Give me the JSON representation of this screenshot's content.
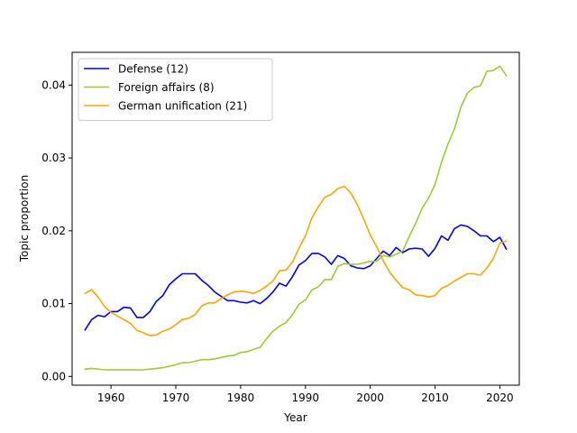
{
  "chart_data": {
    "type": "line",
    "xlabel": "Year",
    "ylabel": "Topic proportion",
    "xlim": [
      1954,
      2023
    ],
    "ylim": [
      -0.0012,
      0.0445
    ],
    "xticks": [
      1960,
      1970,
      1980,
      1990,
      2000,
      2010,
      2020
    ],
    "yticks": [
      0.0,
      0.01,
      0.02,
      0.03,
      0.04
    ],
    "xtick_labels": [
      "1960",
      "1970",
      "1980",
      "1990",
      "2000",
      "2010",
      "2020"
    ],
    "ytick_labels": [
      "0.00",
      "0.01",
      "0.02",
      "0.03",
      "0.04"
    ],
    "grid": false,
    "legend_position": "top-left",
    "x": [
      1956,
      1957,
      1958,
      1959,
      1960,
      1961,
      1962,
      1963,
      1964,
      1965,
      1966,
      1967,
      1968,
      1969,
      1970,
      1971,
      1972,
      1973,
      1974,
      1975,
      1976,
      1977,
      1978,
      1979,
      1980,
      1981,
      1982,
      1983,
      1984,
      1985,
      1986,
      1987,
      1988,
      1989,
      1990,
      1991,
      1992,
      1993,
      1994,
      1995,
      1996,
      1997,
      1998,
      1999,
      2000,
      2001,
      2002,
      2003,
      2004,
      2005,
      2006,
      2007,
      2008,
      2009,
      2010,
      2011,
      2012,
      2013,
      2014,
      2015,
      2016,
      2017,
      2018,
      2019,
      2020,
      2021
    ],
    "series": [
      {
        "name": "Defense (12)",
        "color": "#0000ee",
        "values": [
          0.0064,
          0.0078,
          0.0084,
          0.0082,
          0.0089,
          0.0089,
          0.0095,
          0.0094,
          0.0081,
          0.0081,
          0.0089,
          0.0103,
          0.0111,
          0.0126,
          0.0134,
          0.0141,
          0.0141,
          0.0141,
          0.0132,
          0.0125,
          0.0116,
          0.011,
          0.0104,
          0.0104,
          0.0102,
          0.0101,
          0.0104,
          0.01,
          0.0107,
          0.0116,
          0.0128,
          0.0124,
          0.0137,
          0.0153,
          0.0159,
          0.0169,
          0.0169,
          0.0164,
          0.0154,
          0.0166,
          0.0162,
          0.0152,
          0.0149,
          0.0148,
          0.0152,
          0.0162,
          0.0172,
          0.0166,
          0.0177,
          0.017,
          0.0175,
          0.0176,
          0.0175,
          0.0165,
          0.0176,
          0.0193,
          0.0187,
          0.0203,
          0.0208,
          0.0206,
          0.02,
          0.0193,
          0.0193,
          0.0185,
          0.0191,
          0.0175
        ]
      },
      {
        "name": "Foreign affairs (8)",
        "color": "#9acd32",
        "values": [
          0.001,
          0.0011,
          0.001,
          0.0009,
          0.0009,
          0.0009,
          0.0009,
          0.0009,
          0.0009,
          0.0009,
          0.001,
          0.0011,
          0.0012,
          0.0014,
          0.0016,
          0.0019,
          0.0019,
          0.0021,
          0.0023,
          0.0023,
          0.0024,
          0.0026,
          0.0028,
          0.0029,
          0.0033,
          0.0034,
          0.0037,
          0.004,
          0.0052,
          0.0062,
          0.0069,
          0.0074,
          0.0085,
          0.0099,
          0.0105,
          0.0119,
          0.0123,
          0.0133,
          0.0133,
          0.0151,
          0.0155,
          0.0154,
          0.0154,
          0.0156,
          0.0158,
          0.0158,
          0.0166,
          0.0164,
          0.0168,
          0.0172,
          0.0192,
          0.021,
          0.0231,
          0.0245,
          0.0264,
          0.0294,
          0.0319,
          0.034,
          0.037,
          0.0389,
          0.0397,
          0.0399,
          0.0419,
          0.042,
          0.0426,
          0.0413
        ]
      },
      {
        "name": "German unification (21)",
        "color": "#ffa500",
        "values": [
          0.0114,
          0.0119,
          0.0109,
          0.0096,
          0.0088,
          0.0083,
          0.0078,
          0.0073,
          0.0063,
          0.006,
          0.0056,
          0.0057,
          0.0062,
          0.0065,
          0.0071,
          0.0078,
          0.008,
          0.0085,
          0.0097,
          0.0101,
          0.0101,
          0.0107,
          0.0112,
          0.0116,
          0.0117,
          0.0116,
          0.0114,
          0.0118,
          0.0124,
          0.0131,
          0.0145,
          0.0146,
          0.0157,
          0.0176,
          0.0193,
          0.0218,
          0.0233,
          0.0246,
          0.025,
          0.0258,
          0.0261,
          0.0252,
          0.0236,
          0.0216,
          0.0194,
          0.0178,
          0.0159,
          0.0143,
          0.0132,
          0.0122,
          0.0119,
          0.0112,
          0.0111,
          0.0109,
          0.0111,
          0.0121,
          0.0125,
          0.0131,
          0.0136,
          0.0141,
          0.0141,
          0.0139,
          0.0149,
          0.0162,
          0.0183,
          0.0186
        ]
      }
    ]
  }
}
